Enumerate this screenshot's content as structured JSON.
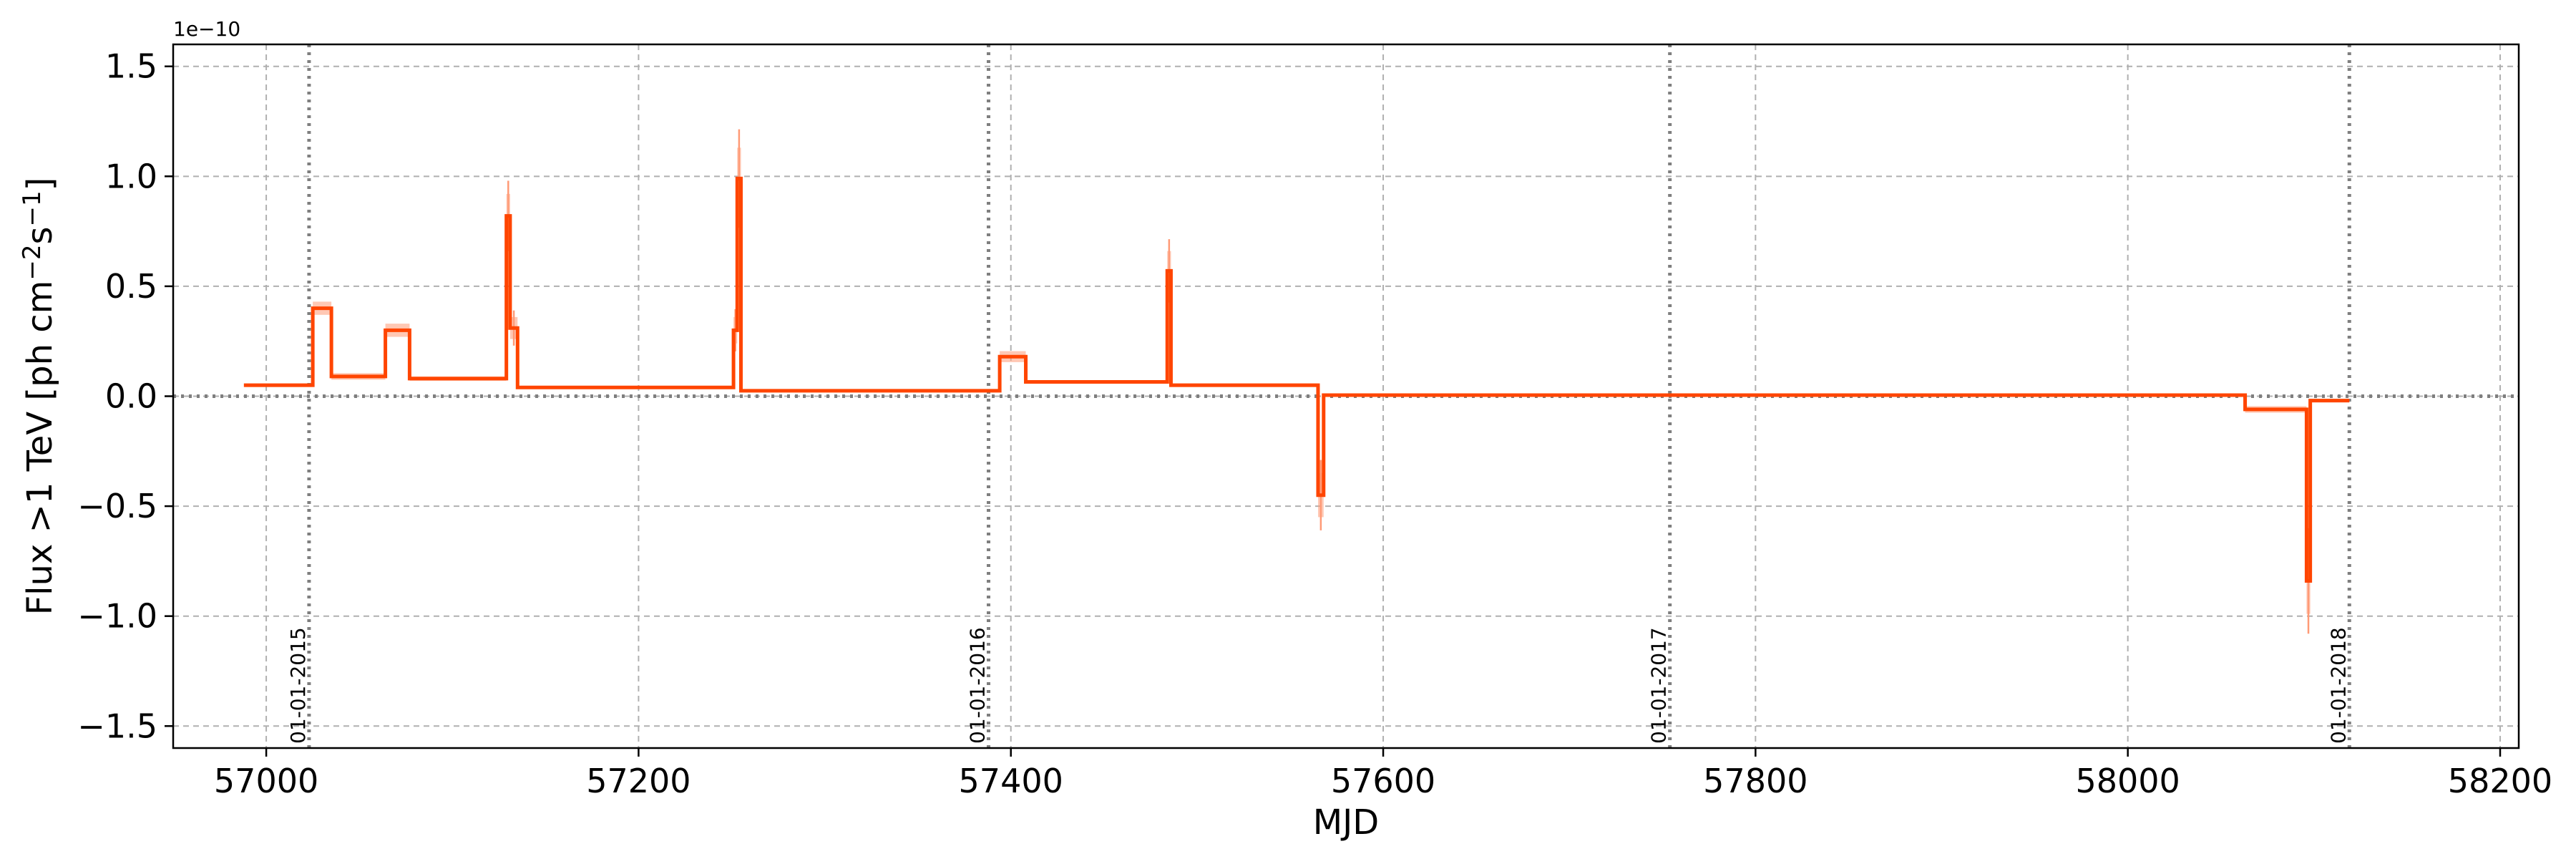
{
  "chart_data": {
    "type": "line",
    "xlabel": "MJD",
    "ylabel_prefix": "Flux >1 TeV [ph cm",
    "ylabel_exp1": "−2",
    "ylabel_mid": "s",
    "ylabel_exp2": "−1",
    "ylabel_suffix": "]",
    "y_offset_label": "1e−10",
    "xlim": [
      56950,
      58210
    ],
    "ylim": [
      -1.6,
      1.6
    ],
    "xticks": [
      57000,
      57200,
      57400,
      57600,
      57800,
      58000,
      58200
    ],
    "yticks": [
      -1.5,
      -1.0,
      -0.5,
      0.0,
      0.5,
      1.0,
      1.5
    ],
    "ytick_labels": [
      "−1.5",
      "−1.0",
      "−0.5",
      "0.0",
      "0.5",
      "1.0",
      "1.5"
    ],
    "grid": true,
    "colors": {
      "line": "#ff4500",
      "band": "#ff9a76",
      "ref": "#7f7f7f",
      "grid": "#b0b0b0"
    },
    "year_markers": [
      {
        "x": 57023,
        "label": "01-01-2015"
      },
      {
        "x": 57388,
        "label": "01-01-2016"
      },
      {
        "x": 57754,
        "label": "01-01-2017"
      },
      {
        "x": 58119,
        "label": "01-01-2018"
      }
    ],
    "zero_line": 0.0,
    "bins": [
      {
        "x0": 56988,
        "x1": 57025,
        "y": 0.05,
        "err": 0.008
      },
      {
        "x0": 57025,
        "x1": 57035,
        "y": 0.4,
        "err": 0.03
      },
      {
        "x0": 57035,
        "x1": 57064,
        "y": 0.09,
        "err": 0.015
      },
      {
        "x0": 57064,
        "x1": 57077,
        "y": 0.3,
        "err": 0.03
      },
      {
        "x0": 57077,
        "x1": 57129,
        "y": 0.08,
        "err": 0.01
      },
      {
        "x0": 57129,
        "x1": 57131,
        "y": 0.82,
        "err": 0.1
      },
      {
        "x0": 57131,
        "x1": 57135,
        "y": 0.31,
        "err": 0.05
      },
      {
        "x0": 57135,
        "x1": 57251,
        "y": 0.04,
        "err": 0.006
      },
      {
        "x0": 57251,
        "x1": 57253,
        "y": 0.3,
        "err": 0.06
      },
      {
        "x0": 57253,
        "x1": 57255,
        "y": 0.99,
        "err": 0.14
      },
      {
        "x0": 57255,
        "x1": 57394,
        "y": 0.025,
        "err": 0.005
      },
      {
        "x0": 57394,
        "x1": 57408,
        "y": 0.18,
        "err": 0.025
      },
      {
        "x0": 57408,
        "x1": 57484,
        "y": 0.065,
        "err": 0.008
      },
      {
        "x0": 57484,
        "x1": 57486,
        "y": 0.57,
        "err": 0.09
      },
      {
        "x0": 57486,
        "x1": 57565,
        "y": 0.05,
        "err": 0.008
      },
      {
        "x0": 57565,
        "x1": 57568,
        "y": -0.45,
        "err": 0.1
      },
      {
        "x0": 57568,
        "x1": 58063,
        "y": 0.005,
        "err": 0.003
      },
      {
        "x0": 58063,
        "x1": 58096,
        "y": -0.06,
        "err": 0.015
      },
      {
        "x0": 58096,
        "x1": 58098,
        "y": -0.84,
        "err": 0.15
      },
      {
        "x0": 58098,
        "x1": 58119,
        "y": -0.02,
        "err": 0.008
      }
    ]
  }
}
